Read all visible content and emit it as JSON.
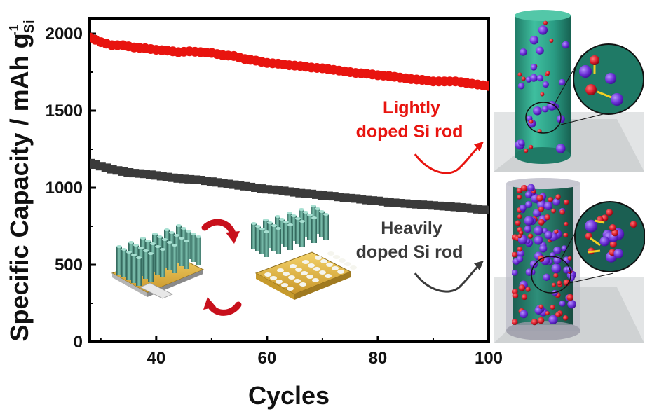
{
  "chart_data": {
    "type": "scatter",
    "xlabel": "Cycles",
    "ylabel": "Specific Capacity / mAh g",
    "ylabel_sup": "-1",
    "ylabel_sub": "Si",
    "xlim": [
      28,
      100
    ],
    "ylim": [
      0,
      2100
    ],
    "xticks": [
      40,
      60,
      80,
      100
    ],
    "yticks": [
      0,
      500,
      1000,
      1500,
      2000
    ],
    "grid": false,
    "series": [
      {
        "name": "Lightly doped Si rod",
        "color": "#e8140f",
        "x": [
          28,
          30,
          32,
          34,
          36,
          38,
          40,
          42,
          44,
          46,
          48,
          50,
          52,
          54,
          56,
          58,
          60,
          62,
          64,
          66,
          68,
          70,
          72,
          74,
          76,
          78,
          80,
          82,
          84,
          86,
          88,
          90,
          92,
          94,
          96,
          98,
          100
        ],
        "y": [
          1975,
          1945,
          1925,
          1925,
          1910,
          1905,
          1895,
          1890,
          1880,
          1885,
          1880,
          1875,
          1860,
          1855,
          1835,
          1825,
          1810,
          1805,
          1795,
          1790,
          1780,
          1775,
          1765,
          1755,
          1745,
          1740,
          1730,
          1725,
          1715,
          1705,
          1700,
          1690,
          1690,
          1690,
          1680,
          1670,
          1660
        ]
      },
      {
        "name": "Heavily doped Si rod",
        "color": "#3a3a3a",
        "x": [
          28,
          30,
          32,
          34,
          36,
          38,
          40,
          42,
          44,
          46,
          48,
          50,
          52,
          54,
          56,
          58,
          60,
          62,
          64,
          66,
          68,
          70,
          72,
          74,
          76,
          78,
          80,
          82,
          84,
          86,
          88,
          90,
          92,
          94,
          96,
          98,
          100
        ],
        "y": [
          1160,
          1140,
          1120,
          1105,
          1095,
          1090,
          1080,
          1070,
          1060,
          1055,
          1050,
          1040,
          1030,
          1020,
          1010,
          1000,
          990,
          985,
          975,
          965,
          960,
          950,
          945,
          935,
          930,
          920,
          915,
          905,
          900,
          895,
          890,
          885,
          880,
          875,
          870,
          860,
          855
        ]
      }
    ],
    "annotations": {
      "light": [
        "Lightly",
        "doped Si rod"
      ],
      "heavy": [
        "Heavily",
        "doped Si rod"
      ]
    }
  },
  "colors": {
    "light": "#e8140f",
    "heavy": "#3a3a3a",
    "arrow_red": "#d0141a",
    "teal": "#2a9c84",
    "purple": "#6a2fd6",
    "red_atom": "#d81b2a"
  },
  "icons": [
    "red-curved-arrow-icon",
    "dark-curved-arrow-icon",
    "nanorod-array-icon",
    "si-rod-lightly-doped-illustration",
    "si-rod-heavily-doped-illustration"
  ]
}
